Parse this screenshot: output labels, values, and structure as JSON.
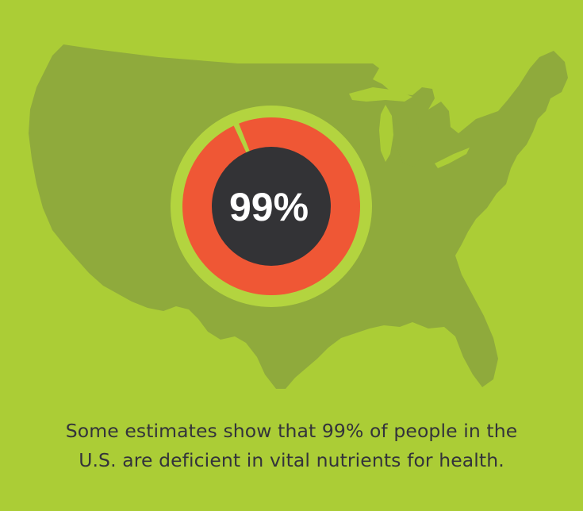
{
  "stat": {
    "percent_label": "99%",
    "percent_value": 99
  },
  "caption": {
    "line1": "Some estimates show that 99% of people in the",
    "line2": "U.S. are deficient in vital nutrients for health."
  },
  "map": {
    "region": "United States"
  },
  "colors": {
    "background": "#abcd36",
    "map": "#8faa3c",
    "ring_outer": "#b3d43f",
    "ring_fill": "#ef5735",
    "center": "#333336",
    "caption_text": "#33333b"
  }
}
